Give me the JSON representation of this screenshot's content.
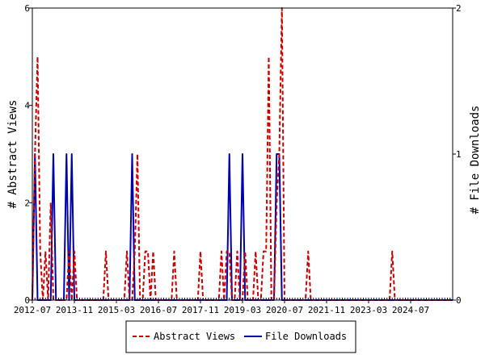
{
  "chart_data": {
    "type": "line",
    "x_axis": {
      "tick_labels": [
        "2012-07",
        "2013-11",
        "2015-03",
        "2016-07",
        "2017-11",
        "2019-03",
        "2020-07",
        "2021-11",
        "2023-03",
        "2024-07"
      ],
      "range": [
        "2012-07",
        "2025-11"
      ]
    },
    "y_left": {
      "label": "# Abstract Views",
      "ylim": [
        0,
        6
      ],
      "ticks": [
        0,
        2,
        4,
        6
      ]
    },
    "y_right": {
      "label": "# File Downloads",
      "ylim": [
        0,
        2
      ],
      "ticks": [
        0,
        1,
        2
      ]
    },
    "legend": {
      "placement": "bottom"
    },
    "grid": false,
    "series": [
      {
        "name": "Abstract Views",
        "axis": "left",
        "color": "#cc0000",
        "style": "dashed",
        "points": [
          [
            "2012-07",
            0
          ],
          [
            "2012-08",
            3
          ],
          [
            "2012-09",
            5
          ],
          [
            "2012-10",
            1
          ],
          [
            "2012-11",
            0
          ],
          [
            "2012-12",
            1
          ],
          [
            "2013-01",
            0
          ],
          [
            "2013-02",
            2
          ],
          [
            "2013-03",
            0
          ],
          [
            "2013-04",
            0
          ],
          [
            "2013-05",
            0
          ],
          [
            "2013-06",
            0
          ],
          [
            "2013-07",
            0
          ],
          [
            "2013-08",
            0
          ],
          [
            "2013-09",
            1
          ],
          [
            "2013-10",
            0
          ],
          [
            "2013-11",
            1
          ],
          [
            "2013-12",
            0
          ],
          [
            "2014-01",
            0
          ],
          [
            "2014-10",
            0
          ],
          [
            "2014-11",
            1
          ],
          [
            "2014-12",
            0
          ],
          [
            "2015-06",
            0
          ],
          [
            "2015-07",
            1
          ],
          [
            "2015-08",
            0
          ],
          [
            "2015-09",
            0
          ],
          [
            "2015-10",
            1
          ],
          [
            "2015-11",
            3
          ],
          [
            "2015-12",
            0
          ],
          [
            "2016-01",
            0
          ],
          [
            "2016-02",
            1
          ],
          [
            "2016-03",
            1
          ],
          [
            "2016-04",
            0
          ],
          [
            "2016-05",
            1
          ],
          [
            "2016-06",
            0
          ],
          [
            "2016-12",
            0
          ],
          [
            "2017-01",
            1
          ],
          [
            "2017-02",
            0
          ],
          [
            "2017-10",
            0
          ],
          [
            "2017-11",
            1
          ],
          [
            "2017-12",
            0
          ],
          [
            "2018-06",
            0
          ],
          [
            "2018-07",
            1
          ],
          [
            "2018-08",
            0
          ],
          [
            "2018-09",
            1
          ],
          [
            "2018-10",
            1
          ],
          [
            "2018-11",
            0
          ],
          [
            "2018-12",
            0
          ],
          [
            "2019-01",
            1
          ],
          [
            "2019-02",
            0
          ],
          [
            "2019-03",
            0
          ],
          [
            "2019-04",
            1
          ],
          [
            "2019-05",
            0
          ],
          [
            "2019-06",
            0
          ],
          [
            "2019-07",
            0
          ],
          [
            "2019-08",
            1
          ],
          [
            "2019-09",
            0
          ],
          [
            "2019-10",
            0
          ],
          [
            "2019-11",
            1
          ],
          [
            "2019-12",
            1
          ],
          [
            "2020-01",
            5
          ],
          [
            "2020-02",
            0
          ],
          [
            "2020-03",
            0
          ],
          [
            "2020-04",
            2
          ],
          [
            "2020-05",
            3
          ],
          [
            "2020-06",
            6
          ],
          [
            "2020-07",
            0
          ],
          [
            "2020-08",
            0
          ],
          [
            "2021-03",
            0
          ],
          [
            "2021-04",
            1
          ],
          [
            "2021-05",
            0
          ],
          [
            "2023-11",
            0
          ],
          [
            "2023-12",
            1
          ],
          [
            "2024-01",
            0
          ],
          [
            "2025-11",
            0
          ]
        ]
      },
      {
        "name": "File Downloads",
        "axis": "right",
        "color": "#0000aa",
        "style": "solid",
        "points": [
          [
            "2012-07",
            0
          ],
          [
            "2012-08",
            1
          ],
          [
            "2012-09",
            0
          ],
          [
            "2012-10",
            0
          ],
          [
            "2012-11",
            0
          ],
          [
            "2012-12",
            0
          ],
          [
            "2013-01",
            0
          ],
          [
            "2013-02",
            0
          ],
          [
            "2013-03",
            1
          ],
          [
            "2013-04",
            0
          ],
          [
            "2013-05",
            0
          ],
          [
            "2013-06",
            0
          ],
          [
            "2013-07",
            0
          ],
          [
            "2013-08",
            1
          ],
          [
            "2013-09",
            0
          ],
          [
            "2013-10",
            1
          ],
          [
            "2013-11",
            0
          ],
          [
            "2013-12",
            0
          ],
          [
            "2015-08",
            0
          ],
          [
            "2015-09",
            1
          ],
          [
            "2015-10",
            0
          ],
          [
            "2015-11",
            0
          ],
          [
            "2018-09",
            0
          ],
          [
            "2018-10",
            1
          ],
          [
            "2018-11",
            0
          ],
          [
            "2018-12",
            0
          ],
          [
            "2019-01",
            0
          ],
          [
            "2019-02",
            0
          ],
          [
            "2019-03",
            1
          ],
          [
            "2019-04",
            0
          ],
          [
            "2019-12",
            0
          ],
          [
            "2020-01",
            0
          ],
          [
            "2020-02",
            0
          ],
          [
            "2020-03",
            0
          ],
          [
            "2020-04",
            1
          ],
          [
            "2020-05",
            1
          ],
          [
            "2020-06",
            0
          ],
          [
            "2025-11",
            0
          ]
        ]
      }
    ]
  }
}
